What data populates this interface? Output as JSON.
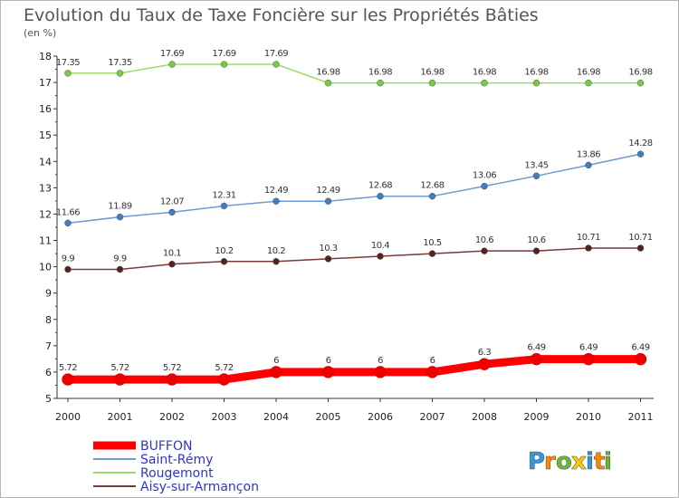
{
  "chart_data": {
    "type": "line",
    "title": "Evolution du Taux de Taxe Foncière sur les Propriétés Bâties",
    "subtitle": "(en %)",
    "xlabel": "",
    "ylabel": "",
    "ylim": [
      5,
      18
    ],
    "yticks": [
      "5",
      "6",
      "7",
      "8",
      "9",
      "10",
      "11",
      "12",
      "13",
      "14",
      "15",
      "16",
      "17",
      "18"
    ],
    "x": [
      "2000",
      "2001",
      "2002",
      "2003",
      "2004",
      "2005",
      "2006",
      "2007",
      "2008",
      "2009",
      "2010",
      "2011"
    ],
    "series": [
      {
        "name": "BUFFON",
        "color": "#ff0000",
        "marker": "#ee0000",
        "values": [
          5.72,
          5.72,
          5.72,
          5.72,
          6,
          6,
          6,
          6,
          6.3,
          6.49,
          6.49,
          6.49
        ],
        "labels": [
          "5.72",
          "5.72",
          "5.72",
          "5.72",
          "6",
          "6",
          "6",
          "6",
          "6.3",
          "6.49",
          "6.49",
          "6.49"
        ]
      },
      {
        "name": "Saint-Rémy",
        "color": "#6b9bd2",
        "marker": "#3f7fc0",
        "values": [
          11.66,
          11.89,
          12.07,
          12.31,
          12.49,
          12.49,
          12.68,
          12.68,
          13.06,
          13.45,
          13.86,
          14.28
        ],
        "labels": [
          "11.66",
          "11.89",
          "12.07",
          "12.31",
          "12.49",
          "12.49",
          "12.68",
          "12.68",
          "13.06",
          "13.45",
          "13.86",
          "14.28"
        ]
      },
      {
        "name": "Rougemont",
        "color": "#99dd66",
        "marker": "#77cc44",
        "values": [
          17.35,
          17.35,
          17.69,
          17.69,
          17.69,
          16.98,
          16.98,
          16.98,
          16.98,
          16.98,
          16.98,
          16.98
        ],
        "labels": [
          "17.35",
          "17.35",
          "17.69",
          "17.69",
          "17.69",
          "16.98",
          "16.98",
          "16.98",
          "16.98",
          "16.98",
          "16.98",
          "16.98"
        ]
      },
      {
        "name": "Aisy-sur-Armançon",
        "color": "#7a3a3a",
        "marker": "#5a2020",
        "values": [
          9.9,
          9.9,
          10.1,
          10.2,
          10.2,
          10.3,
          10.4,
          10.5,
          10.6,
          10.6,
          10.71,
          10.71
        ],
        "labels": [
          "9.9",
          "9.9",
          "10.1",
          "10.2",
          "10.2",
          "10.3",
          "10.4",
          "10.5",
          "10.6",
          "10.6",
          "10.71",
          "10.71"
        ]
      }
    ],
    "legend": "bottom-left",
    "grid": false
  },
  "logo": {
    "letters": [
      "P",
      "r",
      "o",
      "x",
      "i",
      "t",
      "i"
    ],
    "colors": [
      "#3399dd",
      "#ff8800",
      "#66bb33",
      "#ffcc00",
      "#3399dd",
      "#ff8800",
      "#66bb33"
    ]
  }
}
